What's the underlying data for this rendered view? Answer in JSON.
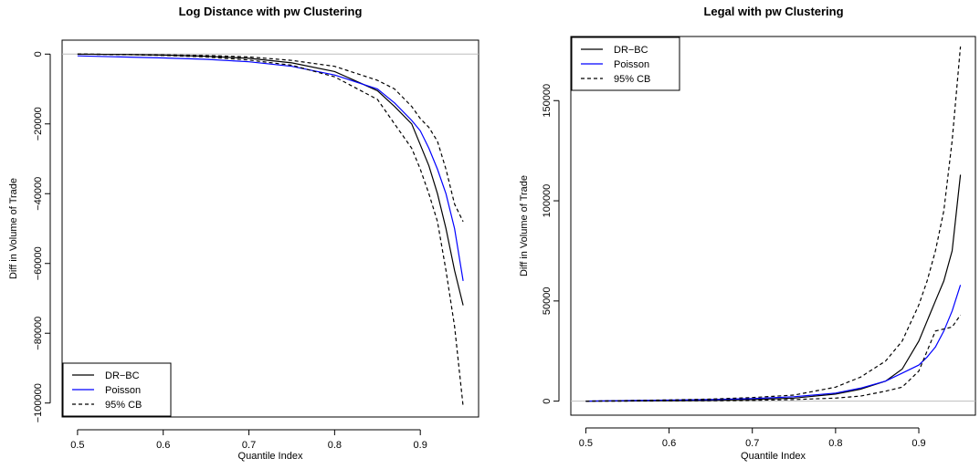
{
  "chart_data": [
    {
      "type": "line",
      "title": "Log Distance with pw Clustering",
      "xlabel": "Quantile Index",
      "ylabel": "Diff in Volume of Trade",
      "xlim": [
        0.5,
        0.95
      ],
      "ylim": [
        -100000,
        0
      ],
      "xticks": [
        0.5,
        0.6,
        0.7,
        0.8,
        0.9
      ],
      "xtick_labels": [
        "0.5",
        "0.6",
        "0.7",
        "0.8",
        "0.9"
      ],
      "yticks": [
        0,
        -20000,
        -40000,
        -60000,
        -80000,
        -100000
      ],
      "ytick_labels": [
        "0",
        "−20000",
        "−40000",
        "−60000",
        "−80000",
        "−100000"
      ],
      "hline": 0,
      "grid": false,
      "legend_position": "bottom-left",
      "legend": [
        "DR−BC",
        "Poisson",
        "95% CB"
      ],
      "x": [
        0.5,
        0.55,
        0.6,
        0.65,
        0.7,
        0.75,
        0.8,
        0.85,
        0.87,
        0.89,
        0.9,
        0.91,
        0.92,
        0.93,
        0.94,
        0.95
      ],
      "series": [
        {
          "name": "DR−BC",
          "color": "#000000",
          "dash": "solid",
          "values": [
            0,
            -100,
            -300,
            -600,
            -1200,
            -2500,
            -5000,
            -10500,
            -15000,
            -20000,
            -26000,
            -32000,
            -40000,
            -50000,
            -62000,
            -72000
          ]
        },
        {
          "name": "Poisson",
          "color": "#0000ff",
          "dash": "solid",
          "values": [
            -500,
            -800,
            -1100,
            -1500,
            -2200,
            -3500,
            -6000,
            -10000,
            -14000,
            -19000,
            -22000,
            -27000,
            -33000,
            -40000,
            -50000,
            -65000
          ]
        },
        {
          "name": "95% CB",
          "color": "#000000",
          "dash": "dashed",
          "values": [
            0,
            -100,
            -200,
            -400,
            -800,
            -1800,
            -3500,
            -7500,
            -10000,
            -15000,
            -18500,
            -21000,
            -25000,
            -33000,
            -43000,
            -48000
          ]
        },
        {
          "name": "95% CB",
          "color": "#000000",
          "dash": "dashed",
          "legend": false,
          "values": [
            0,
            -100,
            -400,
            -800,
            -1700,
            -3200,
            -6500,
            -13000,
            -20000,
            -27000,
            -33000,
            -40000,
            -48000,
            -62000,
            -78000,
            -101000
          ]
        }
      ]
    },
    {
      "type": "line",
      "title": "Legal with pw Clustering",
      "xlabel": "Quantile Index",
      "ylabel": "Diff in Volume of Trade",
      "xlim": [
        0.5,
        0.95
      ],
      "ylim": [
        0,
        175000
      ],
      "xticks": [
        0.5,
        0.6,
        0.7,
        0.8,
        0.9
      ],
      "xtick_labels": [
        "0.5",
        "0.6",
        "0.7",
        "0.8",
        "0.9"
      ],
      "yticks": [
        0,
        50000,
        100000,
        150000
      ],
      "ytick_labels": [
        "0",
        "50000",
        "100000",
        "150000"
      ],
      "hline": 0,
      "grid": false,
      "legend_position": "top-left",
      "legend": [
        "DR−BC",
        "Poisson",
        "95% CB"
      ],
      "x": [
        0.5,
        0.55,
        0.6,
        0.65,
        0.7,
        0.75,
        0.8,
        0.83,
        0.86,
        0.88,
        0.9,
        0.91,
        0.92,
        0.93,
        0.94,
        0.95
      ],
      "series": [
        {
          "name": "DR−BC",
          "color": "#000000",
          "dash": "solid",
          "values": [
            0,
            100,
            200,
            400,
            800,
            1500,
            3500,
            6000,
            10000,
            16000,
            30000,
            40000,
            50000,
            60000,
            75000,
            113000
          ]
        },
        {
          "name": "Poisson",
          "color": "#0000ff",
          "dash": "solid",
          "values": [
            0,
            300,
            500,
            800,
            1300,
            2200,
            4000,
            6500,
            10000,
            14000,
            18000,
            22000,
            27000,
            35000,
            45000,
            58000
          ]
        },
        {
          "name": "95% CB",
          "color": "#000000",
          "dash": "dashed",
          "values": [
            0,
            300,
            600,
            1000,
            1800,
            3000,
            7000,
            12000,
            20000,
            30000,
            48000,
            60000,
            75000,
            95000,
            130000,
            177000
          ]
        },
        {
          "name": "95% CB",
          "color": "#000000",
          "dash": "dashed",
          "legend": false,
          "values": [
            0,
            0,
            100,
            200,
            400,
            800,
            1500,
            2500,
            5000,
            7000,
            15000,
            25000,
            35000,
            36000,
            37000,
            43000
          ]
        }
      ]
    }
  ]
}
